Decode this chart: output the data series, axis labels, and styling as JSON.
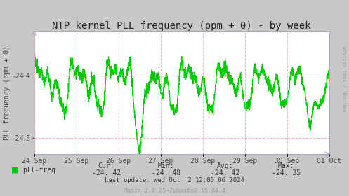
{
  "title": "NTP kernel PLL frequency (ppm + 0) - by week",
  "ylabel": "PLL frequency (ppm + 0)",
  "bg_color": "#c8c8c8",
  "plot_bg_color": "#ffffff",
  "line_color": "#00cc00",
  "grid_h_color": "#ffaaaa",
  "grid_v_color": "#ffaaaa",
  "ylim": [
    -24.525,
    -24.33
  ],
  "yticks": [
    -24.5,
    -24.4
  ],
  "xlabel_dates": [
    "24 Sep",
    "25 Sep",
    "26 Sep",
    "27 Sep",
    "28 Sep",
    "29 Sep",
    "30 Sep",
    "01 Oct"
  ],
  "legend_label": "pll-freq",
  "legend_color": "#00cc00",
  "cur": "-24. 42",
  "min": "-24. 48",
  "avg": "-24. 42",
  "max": "-24. 35",
  "last_update": "Last update: Wed Oct  2 12:00:06 2024",
  "munin_version": "Munin 2.0.25-2ubuntu0.16.04.4",
  "rrdtool_label": "RRDTOOL / TOBI OETIKER",
  "title_fontsize": 10,
  "axis_fontsize": 7,
  "legend_fontsize": 7,
  "footer_fontsize": 6.5,
  "rrd_fontsize": 5,
  "arrow_color": "#aaaacc"
}
